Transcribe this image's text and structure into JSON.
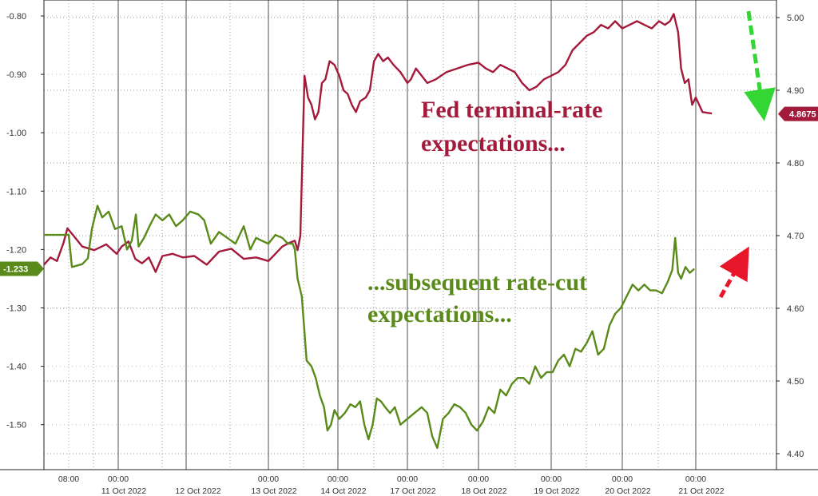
{
  "chart_data": {
    "type": "line",
    "left_axis": {
      "ticks": [
        "-0.80",
        "-0.90",
        "-1.00",
        "-1.10",
        "-1.20",
        "-1.30",
        "-1.40",
        "-1.50"
      ],
      "range": [
        -1.56,
        -0.77
      ]
    },
    "right_axis": {
      "ticks": [
        "5.00",
        "4.90",
        "4.80",
        "4.70",
        "4.60",
        "4.50",
        "4.40"
      ],
      "range": [
        4.39,
        5.02
      ]
    },
    "x_axis": {
      "range_days": [
        0,
        9.6
      ],
      "ticks": [
        {
          "time": "08:00",
          "date": ""
        },
        {
          "time": "00:00",
          "date": "11 Oct 2022"
        },
        {
          "time": "",
          "date": "12 Oct 2022"
        },
        {
          "time": "00:00",
          "date": "13 Oct 2022"
        },
        {
          "time": "00:00",
          "date": "14 Oct 2022"
        },
        {
          "time": "00:00",
          "date": "17 Oct 2022"
        },
        {
          "time": "00:00",
          "date": "18 Oct 2022"
        },
        {
          "time": "00:00",
          "date": "19 Oct 2022"
        },
        {
          "time": "00:00",
          "date": "20 Oct 2022"
        },
        {
          "time": "00:00",
          "date": "21 Oct 2022"
        }
      ]
    },
    "grid": true,
    "series": [
      {
        "axis": "right",
        "color": "#a31a3b",
        "last_value_label": "4.8675",
        "points": [
          [
            0.0,
            4.66
          ],
          [
            0.1,
            4.67
          ],
          [
            0.2,
            4.665
          ],
          [
            0.3,
            4.69
          ],
          [
            0.36,
            4.71
          ],
          [
            0.44,
            4.7
          ],
          [
            0.55,
            4.685
          ],
          [
            0.7,
            4.68
          ],
          [
            0.85,
            4.688
          ],
          [
            0.98,
            4.675
          ],
          [
            1.05,
            4.685
          ],
          [
            1.15,
            4.692
          ],
          [
            1.25,
            4.668
          ],
          [
            1.35,
            4.662
          ],
          [
            1.45,
            4.67
          ],
          [
            1.55,
            4.65
          ],
          [
            1.65,
            4.672
          ],
          [
            1.8,
            4.675
          ],
          [
            1.95,
            4.67
          ],
          [
            2.1,
            4.672
          ],
          [
            2.25,
            4.66
          ],
          [
            2.4,
            4.678
          ],
          [
            2.55,
            4.682
          ],
          [
            2.7,
            4.668
          ],
          [
            2.85,
            4.67
          ],
          [
            3.0,
            4.665
          ],
          [
            3.1,
            4.675
          ],
          [
            3.2,
            4.685
          ],
          [
            3.3,
            4.69
          ],
          [
            3.38,
            4.693
          ],
          [
            3.42,
            4.68
          ],
          [
            3.46,
            4.7
          ],
          [
            3.52,
            4.92
          ],
          [
            3.57,
            4.89
          ],
          [
            3.62,
            4.88
          ],
          [
            3.67,
            4.86
          ],
          [
            3.72,
            4.87
          ],
          [
            3.77,
            4.91
          ],
          [
            3.82,
            4.915
          ],
          [
            3.88,
            4.94
          ],
          [
            3.95,
            4.935
          ],
          [
            4.02,
            4.92
          ],
          [
            4.08,
            4.9
          ],
          [
            4.14,
            4.895
          ],
          [
            4.2,
            4.88
          ],
          [
            4.26,
            4.87
          ],
          [
            4.32,
            4.885
          ],
          [
            4.4,
            4.89
          ],
          [
            4.46,
            4.9
          ],
          [
            4.52,
            4.94
          ],
          [
            4.58,
            4.95
          ],
          [
            4.65,
            4.94
          ],
          [
            4.72,
            4.945
          ],
          [
            4.8,
            4.935
          ],
          [
            4.9,
            4.925
          ],
          [
            5.0,
            4.91
          ],
          [
            5.05,
            4.915
          ],
          [
            5.12,
            4.93
          ],
          [
            5.2,
            4.92
          ],
          [
            5.28,
            4.91
          ],
          [
            5.4,
            4.915
          ],
          [
            5.55,
            4.925
          ],
          [
            5.7,
            4.93
          ],
          [
            5.85,
            4.935
          ],
          [
            6.0,
            4.938
          ],
          [
            6.1,
            4.93
          ],
          [
            6.2,
            4.925
          ],
          [
            6.3,
            4.935
          ],
          [
            6.4,
            4.93
          ],
          [
            6.5,
            4.925
          ],
          [
            6.6,
            4.91
          ],
          [
            6.7,
            4.9
          ],
          [
            6.8,
            4.905
          ],
          [
            6.9,
            4.915
          ],
          [
            7.0,
            4.92
          ],
          [
            7.1,
            4.925
          ],
          [
            7.2,
            4.935
          ],
          [
            7.3,
            4.955
          ],
          [
            7.4,
            4.965
          ],
          [
            7.5,
            4.975
          ],
          [
            7.6,
            4.98
          ],
          [
            7.7,
            4.99
          ],
          [
            7.8,
            4.985
          ],
          [
            7.9,
            4.995
          ],
          [
            8.0,
            4.985
          ],
          [
            8.1,
            4.99
          ],
          [
            8.2,
            4.995
          ],
          [
            8.3,
            4.99
          ],
          [
            8.4,
            4.985
          ],
          [
            8.5,
            4.995
          ],
          [
            8.58,
            4.99
          ],
          [
            8.65,
            4.995
          ],
          [
            8.7,
            5.005
          ],
          [
            8.76,
            4.98
          ],
          [
            8.8,
            4.93
          ],
          [
            8.85,
            4.91
          ],
          [
            8.9,
            4.915
          ],
          [
            8.95,
            4.88
          ],
          [
            9.0,
            4.89
          ],
          [
            9.05,
            4.87
          ],
          [
            9.12,
            4.868
          ]
        ]
      },
      {
        "axis": "left",
        "color": "#5a8a1a",
        "last_value_label": "-1.233",
        "points": [
          [
            0.0,
            -1.175
          ],
          [
            0.38,
            -1.175
          ],
          [
            0.42,
            -1.23
          ],
          [
            0.55,
            -1.225
          ],
          [
            0.62,
            -1.215
          ],
          [
            0.67,
            -1.165
          ],
          [
            0.74,
            -1.125
          ],
          [
            0.8,
            -1.145
          ],
          [
            0.88,
            -1.135
          ],
          [
            0.96,
            -1.165
          ],
          [
            1.05,
            -1.16
          ],
          [
            1.13,
            -1.2
          ],
          [
            1.2,
            -1.185
          ],
          [
            1.26,
            -1.14
          ],
          [
            1.3,
            -1.195
          ],
          [
            1.38,
            -1.18
          ],
          [
            1.46,
            -1.16
          ],
          [
            1.55,
            -1.14
          ],
          [
            1.65,
            -1.15
          ],
          [
            1.75,
            -1.14
          ],
          [
            1.85,
            -1.16
          ],
          [
            1.95,
            -1.15
          ],
          [
            2.05,
            -1.135
          ],
          [
            2.15,
            -1.14
          ],
          [
            2.22,
            -1.15
          ],
          [
            2.3,
            -1.19
          ],
          [
            2.4,
            -1.17
          ],
          [
            2.5,
            -1.18
          ],
          [
            2.6,
            -1.19
          ],
          [
            2.7,
            -1.16
          ],
          [
            2.78,
            -1.2
          ],
          [
            2.85,
            -1.18
          ],
          [
            2.92,
            -1.185
          ],
          [
            3.0,
            -1.19
          ],
          [
            3.1,
            -1.175
          ],
          [
            3.2,
            -1.18
          ],
          [
            3.28,
            -1.19
          ],
          [
            3.35,
            -1.19
          ],
          [
            3.38,
            -1.2
          ],
          [
            3.42,
            -1.25
          ],
          [
            3.48,
            -1.28
          ],
          [
            3.55,
            -1.39
          ],
          [
            3.62,
            -1.4
          ],
          [
            3.68,
            -1.42
          ],
          [
            3.74,
            -1.45
          ],
          [
            3.8,
            -1.47
          ],
          [
            3.85,
            -1.51
          ],
          [
            3.9,
            -1.5
          ],
          [
            3.95,
            -1.475
          ],
          [
            4.02,
            -1.49
          ],
          [
            4.1,
            -1.48
          ],
          [
            4.18,
            -1.465
          ],
          [
            4.25,
            -1.47
          ],
          [
            4.32,
            -1.46
          ],
          [
            4.38,
            -1.5
          ],
          [
            4.44,
            -1.525
          ],
          [
            4.5,
            -1.5
          ],
          [
            4.56,
            -1.455
          ],
          [
            4.62,
            -1.46
          ],
          [
            4.68,
            -1.47
          ],
          [
            4.75,
            -1.48
          ],
          [
            4.82,
            -1.47
          ],
          [
            4.9,
            -1.5
          ],
          [
            5.0,
            -1.49
          ],
          [
            5.1,
            -1.48
          ],
          [
            5.2,
            -1.47
          ],
          [
            5.28,
            -1.48
          ],
          [
            5.35,
            -1.52
          ],
          [
            5.42,
            -1.54
          ],
          [
            5.5,
            -1.49
          ],
          [
            5.58,
            -1.48
          ],
          [
            5.66,
            -1.465
          ],
          [
            5.74,
            -1.47
          ],
          [
            5.82,
            -1.48
          ],
          [
            5.9,
            -1.5
          ],
          [
            5.98,
            -1.51
          ],
          [
            6.06,
            -1.495
          ],
          [
            6.14,
            -1.47
          ],
          [
            6.22,
            -1.48
          ],
          [
            6.3,
            -1.44
          ],
          [
            6.38,
            -1.45
          ],
          [
            6.46,
            -1.43
          ],
          [
            6.54,
            -1.42
          ],
          [
            6.62,
            -1.42
          ],
          [
            6.7,
            -1.43
          ],
          [
            6.78,
            -1.4
          ],
          [
            6.86,
            -1.42
          ],
          [
            6.94,
            -1.41
          ],
          [
            7.02,
            -1.41
          ],
          [
            7.1,
            -1.39
          ],
          [
            7.18,
            -1.38
          ],
          [
            7.26,
            -1.4
          ],
          [
            7.34,
            -1.37
          ],
          [
            7.42,
            -1.375
          ],
          [
            7.5,
            -1.36
          ],
          [
            7.58,
            -1.34
          ],
          [
            7.66,
            -1.38
          ],
          [
            7.74,
            -1.37
          ],
          [
            7.82,
            -1.33
          ],
          [
            7.9,
            -1.31
          ],
          [
            7.98,
            -1.3
          ],
          [
            8.06,
            -1.28
          ],
          [
            8.14,
            -1.26
          ],
          [
            8.22,
            -1.27
          ],
          [
            8.3,
            -1.26
          ],
          [
            8.38,
            -1.27
          ],
          [
            8.46,
            -1.27
          ],
          [
            8.54,
            -1.275
          ],
          [
            8.62,
            -1.255
          ],
          [
            8.68,
            -1.235
          ],
          [
            8.72,
            -1.18
          ],
          [
            8.76,
            -1.24
          ],
          [
            8.8,
            -1.25
          ],
          [
            8.86,
            -1.23
          ],
          [
            8.92,
            -1.24
          ],
          [
            8.98,
            -1.233
          ]
        ]
      }
    ],
    "annotations": [
      {
        "lines": [
          "Fed terminal-rate",
          "expectations..."
        ],
        "color": "#a31a3b"
      },
      {
        "lines": [
          "...subsequent rate-cut",
          "expectations..."
        ],
        "color": "#5a8a1a"
      }
    ],
    "arrows": [
      {
        "color": "#33d633",
        "style": "dashed"
      },
      {
        "color": "#e8162b",
        "style": "dashed"
      }
    ]
  }
}
